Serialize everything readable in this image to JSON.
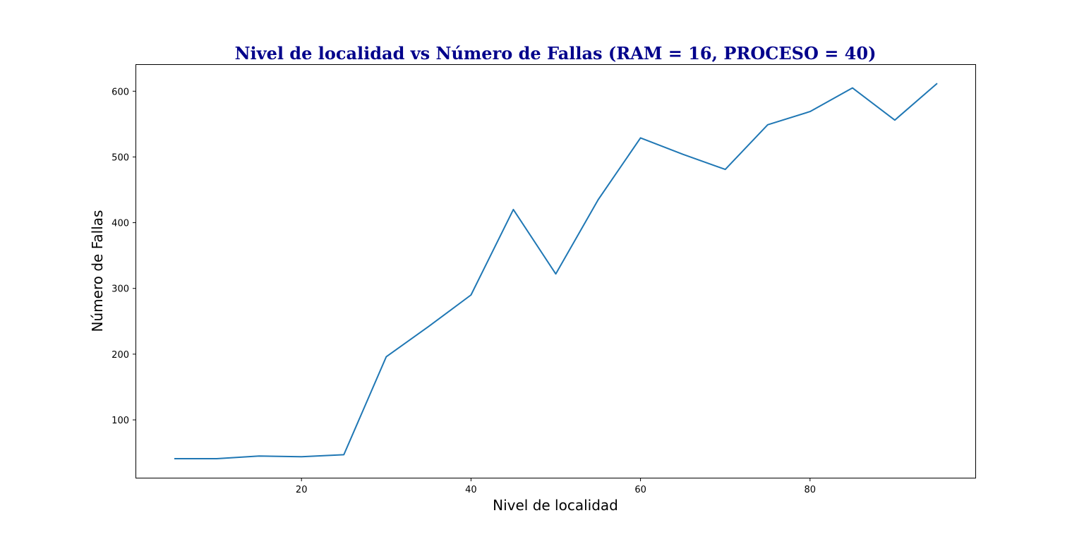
{
  "chart_data": {
    "type": "line",
    "title": "Nivel de localidad vs Número de Fallas (RAM = 16, PROCESO = 40)",
    "xlabel": "Nivel de localidad",
    "ylabel": "Número de Fallas",
    "xlim": [
      0.5,
      99.5
    ],
    "ylim": [
      12,
      640
    ],
    "xticks": [
      20,
      40,
      60,
      80
    ],
    "yticks": [
      100,
      200,
      300,
      400,
      500,
      600
    ],
    "grid": false,
    "series": [
      {
        "x": [
          5,
          10,
          15,
          20,
          25,
          30,
          35,
          40,
          45,
          50,
          55,
          60,
          65,
          70,
          75,
          80,
          85,
          90,
          95
        ],
        "y": [
          41,
          41,
          45,
          44,
          47,
          196,
          242,
          290,
          420,
          322,
          435,
          529,
          504,
          481,
          549,
          569,
          605,
          556,
          612
        ]
      }
    ]
  },
  "colors": {
    "title": "#00008b",
    "line": "#1f77b4",
    "axes": "#000000"
  }
}
